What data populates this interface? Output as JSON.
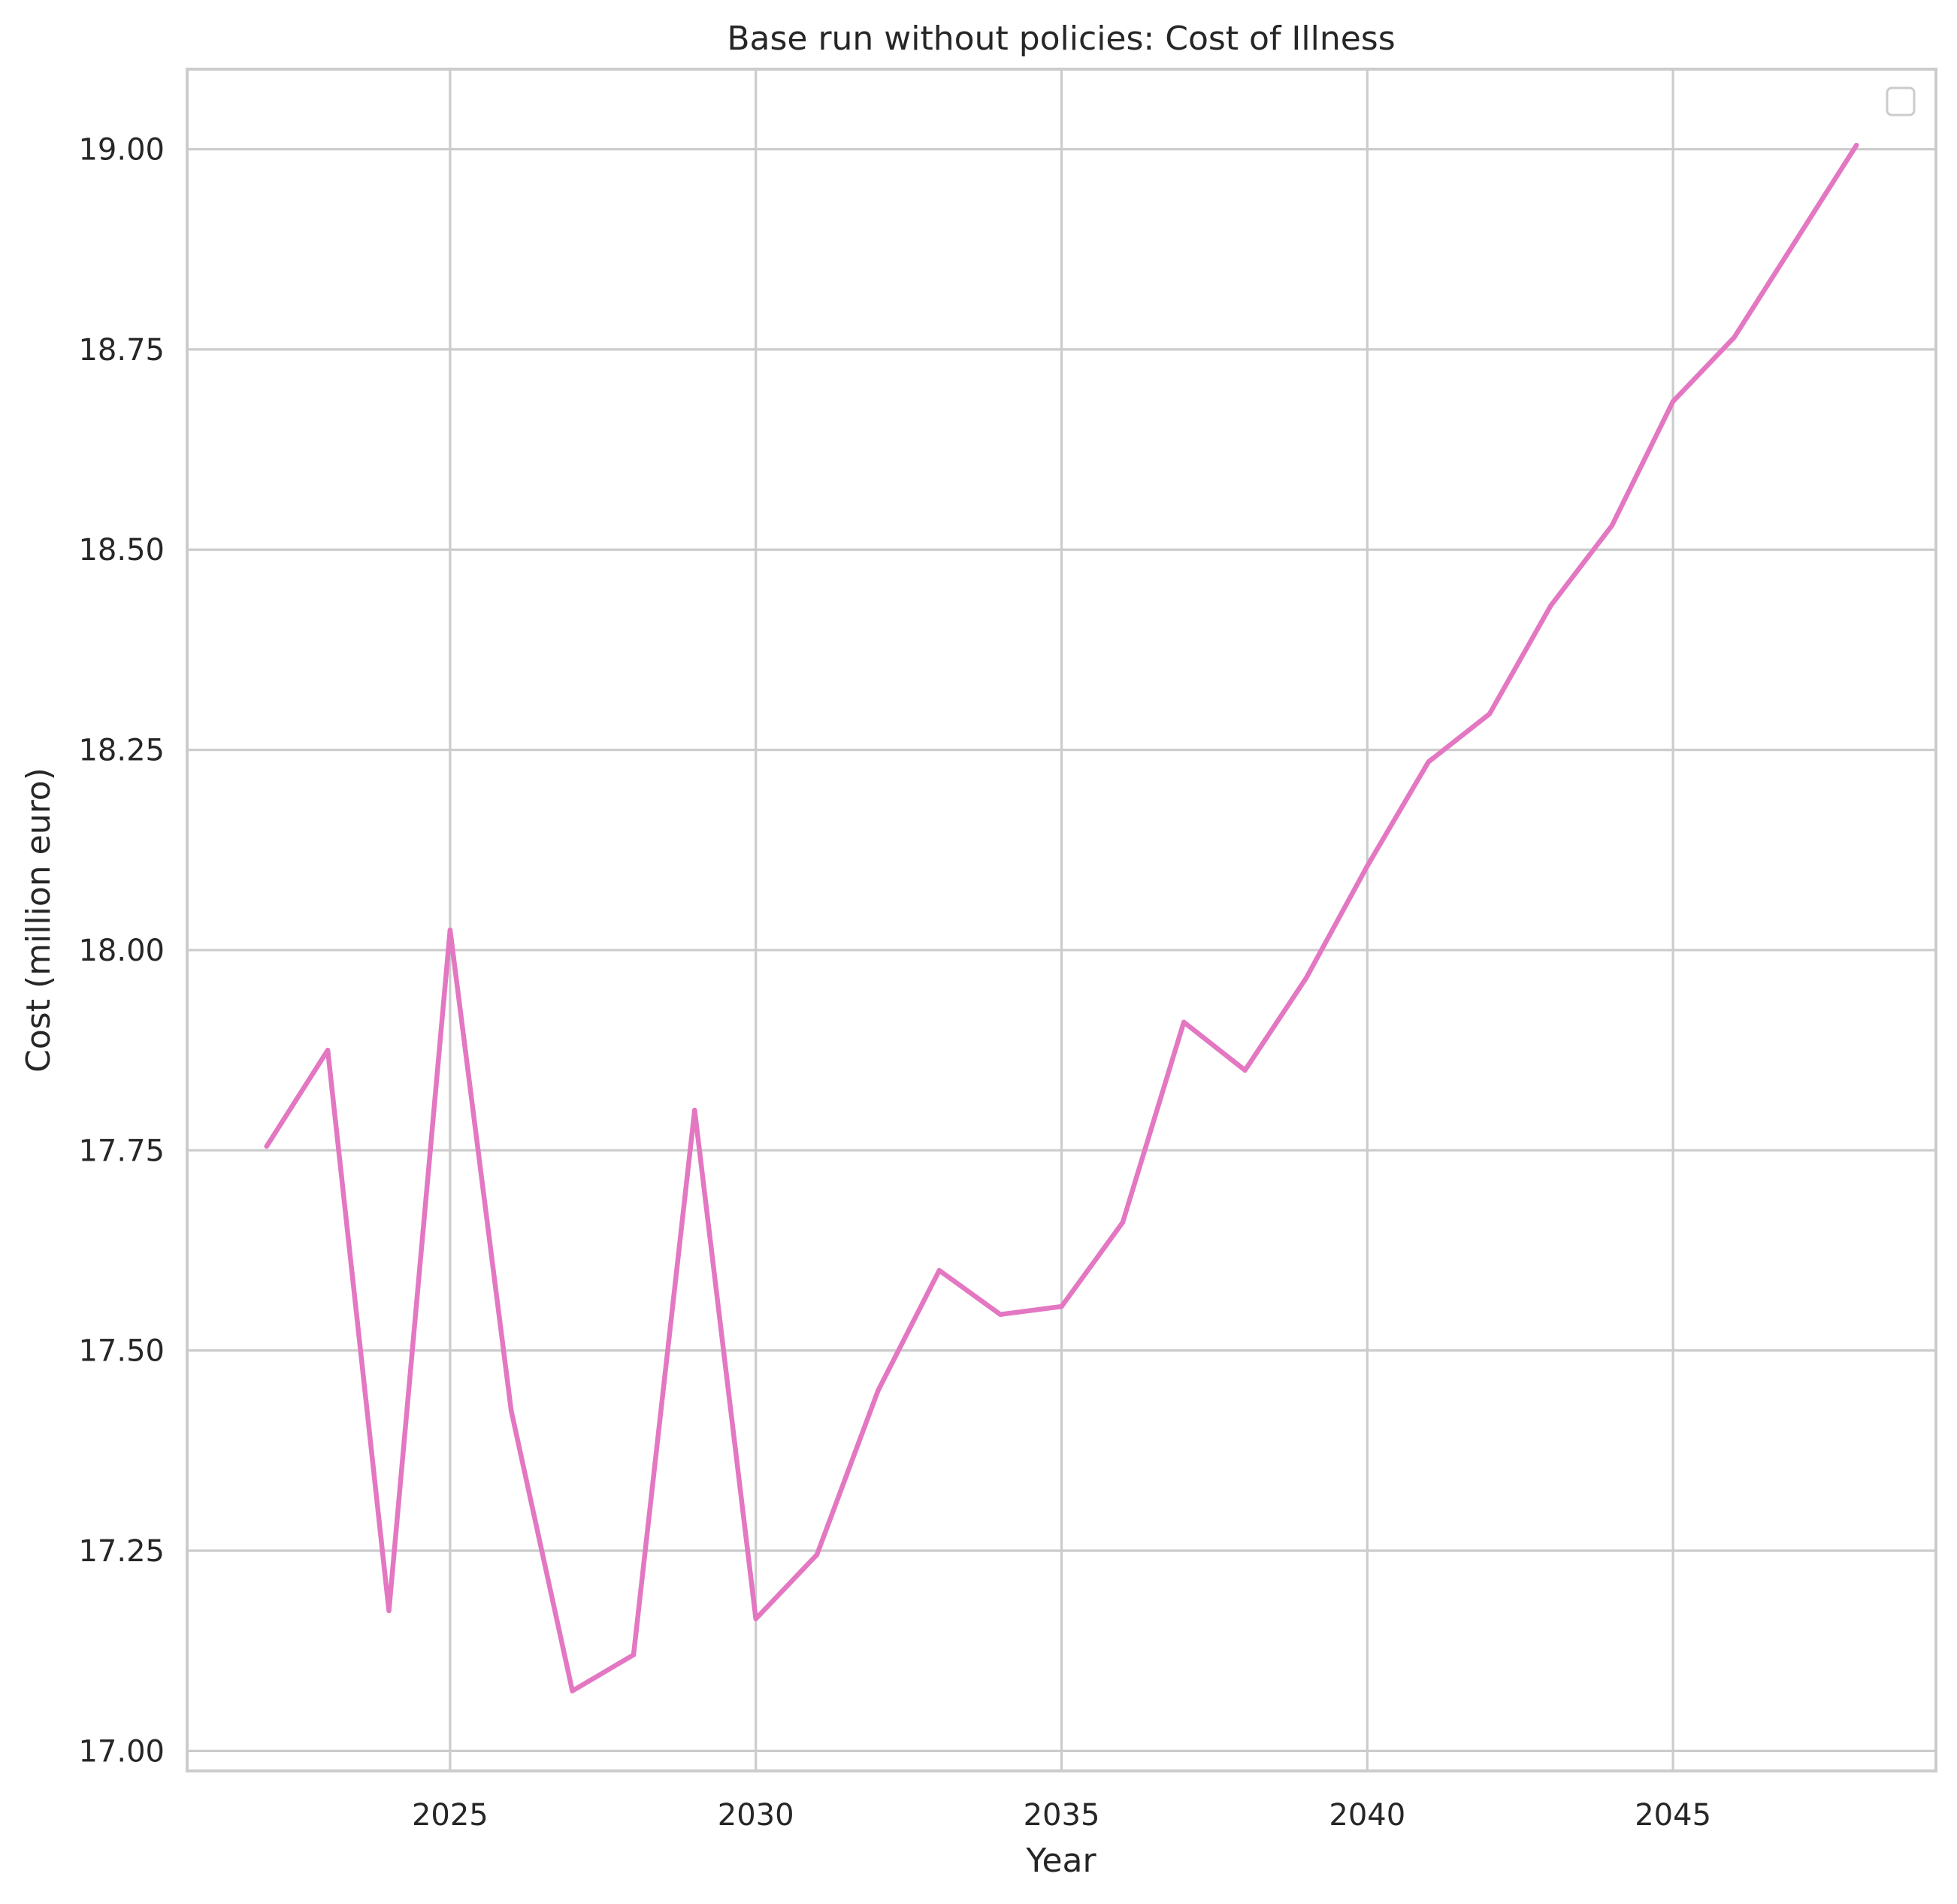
{
  "chart_data": {
    "type": "line",
    "title": "Base run without policies: Cost of Illness",
    "xlabel": "Year",
    "ylabel": "Cost (million euro)",
    "xlim": [
      2020.7,
      2049.3
    ],
    "ylim": [
      16.975,
      19.1
    ],
    "x_ticks": [
      2025,
      2030,
      2035,
      2040,
      2045
    ],
    "y_ticks": [
      17.0,
      17.25,
      17.5,
      17.75,
      18.0,
      18.25,
      18.5,
      18.75,
      19.0
    ],
    "x_tick_labels": [
      "2025",
      "2030",
      "2035",
      "2040",
      "2045"
    ],
    "y_tick_labels": [
      "17.00",
      "17.25",
      "17.50",
      "17.75",
      "18.00",
      "18.25",
      "18.50",
      "18.75",
      "19.00"
    ],
    "grid": true,
    "legend": {
      "position": "upper right",
      "entries": []
    },
    "colors": {
      "series": "#e377c2",
      "grid": "#cccccc",
      "spine": "#cccccc",
      "text": "#262626",
      "background": "#ffffff"
    },
    "series": [
      {
        "x": [
          2022,
          2023,
          2024,
          2025,
          2026,
          2027,
          2028,
          2029,
          2030,
          2031,
          2032,
          2033,
          2034,
          2035,
          2036,
          2037,
          2038,
          2039,
          2040,
          2041,
          2042,
          2043,
          2044,
          2045,
          2046,
          2047,
          2048
        ],
        "values": [
          17.755,
          17.875,
          17.175,
          18.025,
          17.425,
          17.075,
          17.12,
          17.8,
          17.165,
          17.245,
          17.45,
          17.6,
          17.545,
          17.555,
          17.66,
          17.91,
          17.85,
          17.965,
          18.105,
          18.235,
          18.295,
          18.43,
          18.53,
          18.685,
          18.765,
          18.885,
          19.005
        ]
      }
    ]
  }
}
